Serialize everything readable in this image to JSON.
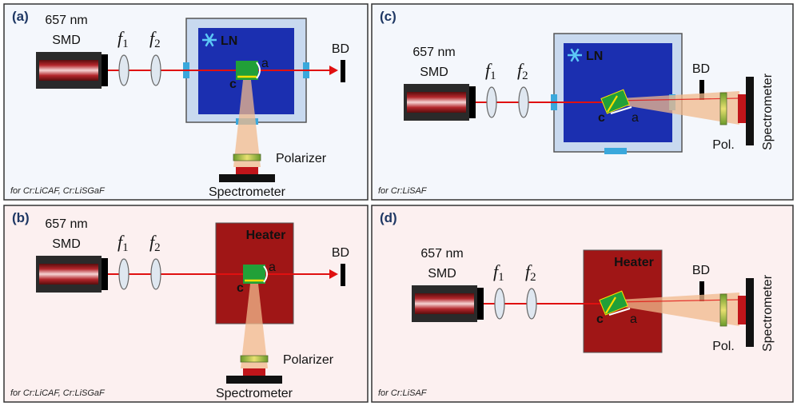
{
  "panels": [
    {
      "label": "(a)",
      "source": {
        "wavelength": "657 nm",
        "name": "SMD"
      },
      "lenses": [
        {
          "symbol": "f",
          "subscript": "1"
        },
        {
          "symbol": "f",
          "subscript": "2"
        }
      ],
      "stage": "LN",
      "crystal": {
        "axis_a": "a",
        "axis_c": "c"
      },
      "beam_dump": "BD",
      "polarizer": "Polarizer",
      "spectrometer": "Spectrometer",
      "note": "for Cr:LiCAF, Cr:LiSGaF"
    },
    {
      "label": "(b)",
      "source": {
        "wavelength": "657 nm",
        "name": "SMD"
      },
      "lenses": [
        {
          "symbol": "f",
          "subscript": "1"
        },
        {
          "symbol": "f",
          "subscript": "2"
        }
      ],
      "stage": "Heater",
      "crystal": {
        "axis_a": "a",
        "axis_c": "c"
      },
      "beam_dump": "BD",
      "polarizer": "Polarizer",
      "spectrometer": "Spectrometer",
      "note": "for Cr:LiCAF, Cr:LiSGaF"
    },
    {
      "label": "(c)",
      "source": {
        "wavelength": "657 nm",
        "name": "SMD"
      },
      "lenses": [
        {
          "symbol": "f",
          "subscript": "1"
        },
        {
          "symbol": "f",
          "subscript": "2"
        }
      ],
      "stage": "LN",
      "crystal": {
        "axis_a": "a",
        "axis_c": "c"
      },
      "beam_dump": "BD",
      "polarizer": "Pol.",
      "spectrometer": "Spectrometer",
      "note": "for Cr:LiSAF"
    },
    {
      "label": "(d)",
      "source": {
        "wavelength": "657 nm",
        "name": "SMD"
      },
      "lenses": [
        {
          "symbol": "f",
          "subscript": "1"
        },
        {
          "symbol": "f",
          "subscript": "2"
        }
      ],
      "stage": "Heater",
      "crystal": {
        "axis_a": "a",
        "axis_c": "c"
      },
      "beam_dump": "BD",
      "polarizer": "Pol.",
      "spectrometer": "Spectrometer",
      "note": "for Cr:LiSAF"
    }
  ]
}
